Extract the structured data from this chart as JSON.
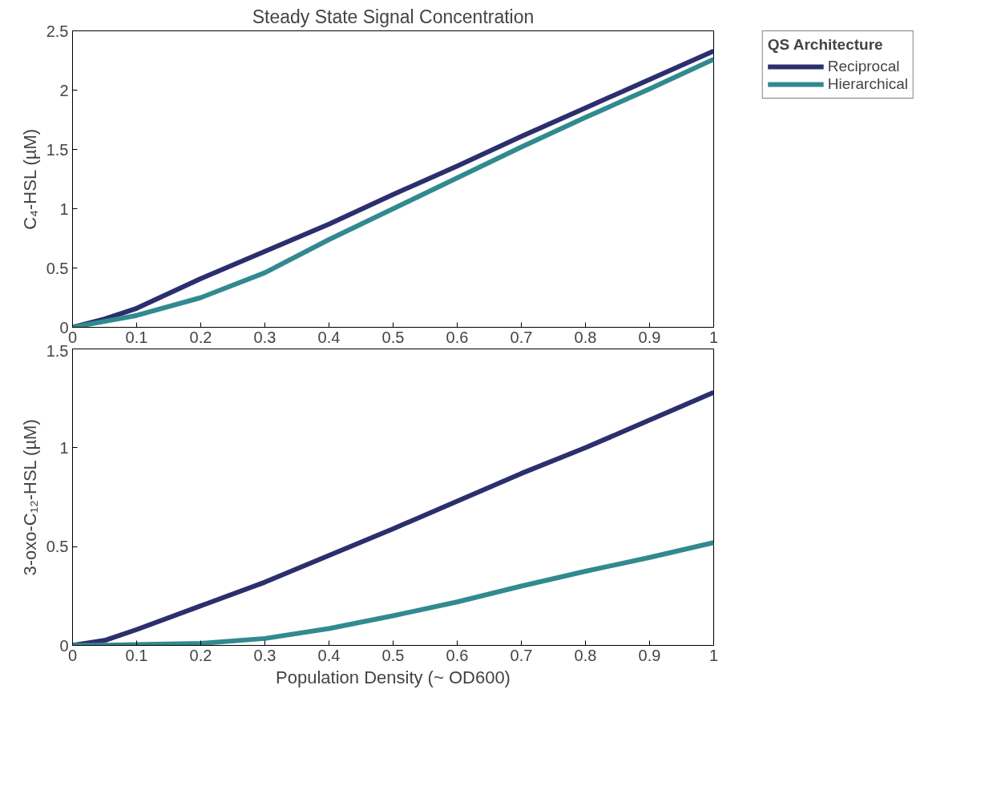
{
  "chart_data": [
    {
      "type": "line",
      "title": "Steady State Signal Concentration",
      "ylabel": "C₄-HSL (µM)",
      "legend_title": "QS Architecture",
      "legend": "right",
      "grid": false,
      "line_style": "solid",
      "marker": "none",
      "x": [
        0,
        0.05,
        0.1,
        0.2,
        0.3,
        0.4,
        0.5,
        0.6,
        0.7,
        0.8,
        0.9,
        1
      ],
      "series": [
        {
          "name": "Reciprocal",
          "color": "#2b2f6e",
          "values": [
            0,
            0.07,
            0.16,
            0.41,
            0.64,
            0.87,
            1.12,
            1.36,
            1.61,
            1.85,
            2.09,
            2.33
          ]
        },
        {
          "name": "Hierarchical",
          "color": "#318a8f",
          "values": [
            0,
            0.05,
            0.1,
            0.25,
            0.46,
            0.74,
            1.0,
            1.26,
            1.52,
            1.77,
            2.01,
            2.26
          ]
        }
      ],
      "xlim": [
        0,
        1
      ],
      "xticks": [
        0,
        0.1,
        0.2,
        0.3,
        0.4,
        0.5,
        0.6,
        0.7,
        0.8,
        0.9,
        1
      ],
      "ylim": [
        0,
        2.5
      ],
      "yticks": [
        0,
        0.5,
        1,
        1.5,
        2,
        2.5
      ]
    },
    {
      "type": "line",
      "xlabel": "Population Density (~ OD600)",
      "ylabel": "3-oxo-C₁₂-HSL (µM)",
      "grid": false,
      "line_style": "solid",
      "marker": "none",
      "x": [
        0,
        0.05,
        0.1,
        0.2,
        0.3,
        0.4,
        0.5,
        0.6,
        0.7,
        0.8,
        0.9,
        1
      ],
      "series": [
        {
          "color": "#2b2f6e",
          "values": [
            0,
            0.025,
            0.08,
            0.2,
            0.32,
            0.455,
            0.59,
            0.73,
            0.87,
            1.0,
            1.14,
            1.28
          ]
        },
        {
          "color": "#318a8f",
          "values": [
            0,
            0.001,
            0.004,
            0.01,
            0.035,
            0.085,
            0.15,
            0.22,
            0.3,
            0.375,
            0.445,
            0.52
          ]
        }
      ],
      "xlim": [
        0,
        1
      ],
      "xticks": [
        0,
        0.1,
        0.2,
        0.3,
        0.4,
        0.5,
        0.6,
        0.7,
        0.8,
        0.9,
        1
      ],
      "ylim": [
        0,
        1.5
      ],
      "yticks": [
        0,
        0.5,
        1,
        1.5
      ]
    }
  ]
}
